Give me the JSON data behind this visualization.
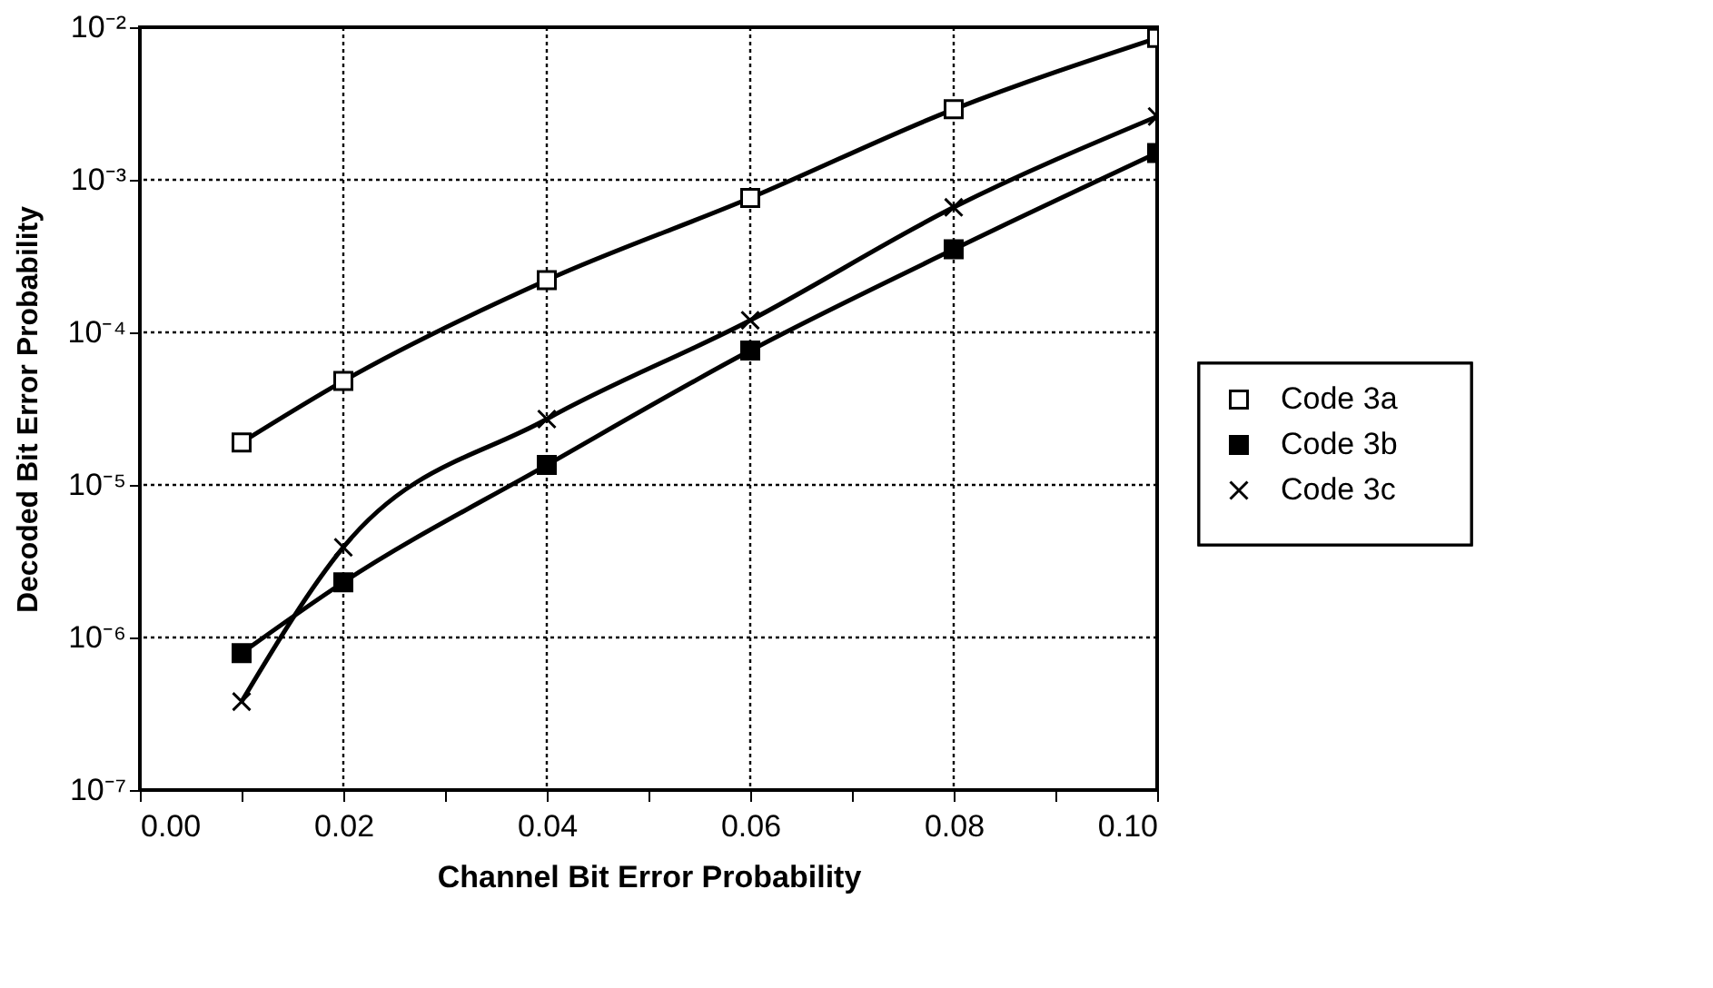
{
  "chart_data": {
    "type": "line",
    "xlabel": "Channel Bit Error Probability",
    "ylabel": "Decoded Bit Error Probability",
    "x": [
      0.01,
      0.02,
      0.04,
      0.06,
      0.08,
      0.1
    ],
    "series": [
      {
        "name": "Code 3a",
        "color": "#000000",
        "marker": "square",
        "colors": [
          "#ffffff",
          "#ffffff",
          "#ffffff",
          "#ffffff",
          "#ffffff",
          "#ffffff"
        ],
        "values": [
          1.9e-05,
          4.8e-05,
          0.00022,
          0.00076,
          0.0029,
          0.0085
        ]
      },
      {
        "name": "Code 3b",
        "color": "#000000",
        "marker": "square",
        "values": [
          7.9e-07,
          2.3e-06,
          1.35e-05,
          7.6e-05,
          0.00035,
          0.0015
        ]
      },
      {
        "name": "Code 3c",
        "color": "#000000",
        "marker": "cross",
        "values": [
          3.8e-07,
          3.9e-06,
          2.7e-05,
          0.00012,
          0.00066,
          0.0026
        ]
      }
    ],
    "log": "y",
    "xlim": [
      0,
      0.1
    ],
    "ylim": [
      1e-07,
      0.01
    ],
    "xticks": [
      {
        "value": 0,
        "label": "0.00"
      },
      {
        "value": 0.01,
        "label": null
      },
      {
        "value": 0.02,
        "label": "0.02"
      },
      {
        "value": 0.03,
        "label": null
      },
      {
        "value": 0.04,
        "label": "0.04"
      },
      {
        "value": 0.05,
        "label": null
      },
      {
        "value": 0.06,
        "label": "0.06"
      },
      {
        "value": 0.07,
        "label": null
      },
      {
        "value": 0.08,
        "label": "0.08"
      },
      {
        "value": 0.09,
        "label": null
      },
      {
        "value": 0.1,
        "label": "0.10"
      }
    ],
    "yticks": [
      {
        "value": 1e-07,
        "label": "10⁻⁷"
      },
      {
        "value": 1e-06,
        "label": "10⁻⁶"
      },
      {
        "value": 1e-05,
        "label": "10⁻⁵"
      },
      {
        "value": 0.0001,
        "label": "10⁻⁴"
      },
      {
        "value": 0.001,
        "label": "10⁻³"
      },
      {
        "value": 0.01,
        "label": "10⁻²"
      }
    ],
    "grid": true,
    "legend": "right",
    "line_style": "solid"
  }
}
